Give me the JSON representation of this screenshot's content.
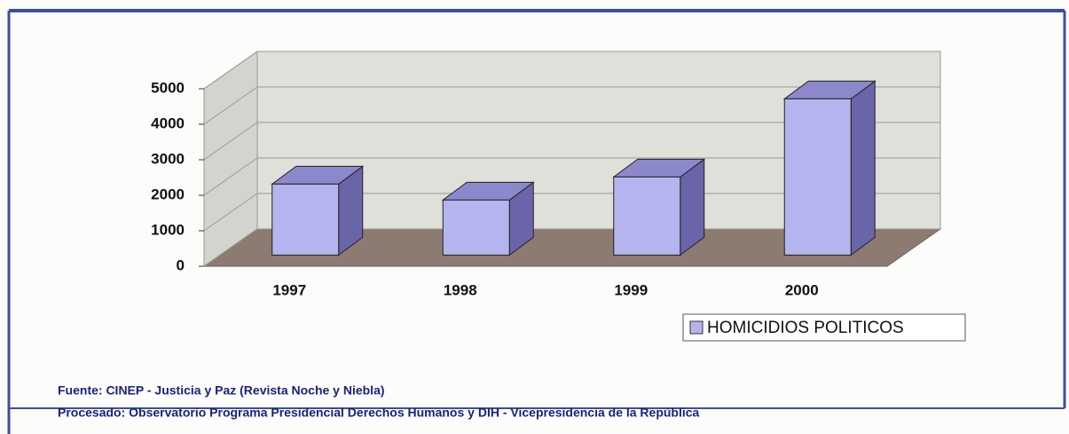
{
  "chart_data": {
    "type": "bar3d",
    "categories": [
      "1997",
      "1998",
      "1999",
      "2000"
    ],
    "series": [
      {
        "name": "HOMICIDIOS POLITICOS",
        "color": "#b4b4ee",
        "values": [
          2000,
          1550,
          2200,
          4400
        ]
      }
    ],
    "ylim": [
      0,
      5000
    ],
    "yticks": [
      0,
      1000,
      2000,
      3000,
      4000,
      5000
    ],
    "grid": true,
    "legend": "bottom-right",
    "annotations": [
      "Fuente: CINEP - Justicia y Paz (Revista Noche y Niebla)",
      "Procesado: Observatorio Programa Presidencial Derechos Humanos y DIH - Vicepresidencia de la República"
    ]
  }
}
